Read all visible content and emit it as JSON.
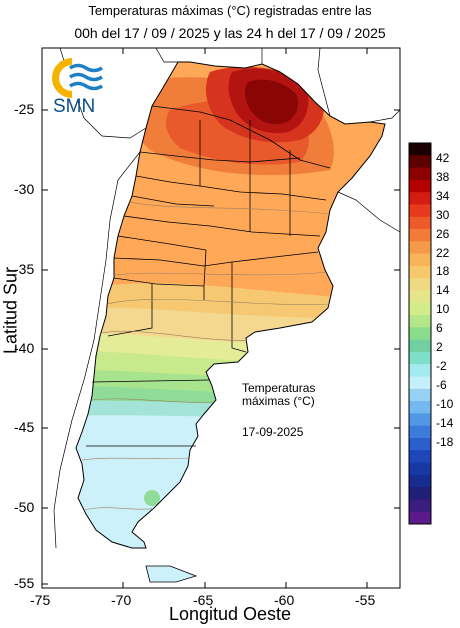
{
  "header": {
    "line1": "Temperaturas máximas (°C) registradas entre las",
    "line2": "00h del 17 / 09 / 2025 y las 24 h del 17 / 09 / 2025"
  },
  "logo": {
    "text": "SMN",
    "icon": "smn-sun-waves-icon"
  },
  "axes": {
    "ylabel": "Latitud Sur",
    "xlabel": "Longitud Oeste",
    "yticks": [
      "-25",
      "-30",
      "-35",
      "-40",
      "-45",
      "-50",
      "-55"
    ],
    "xticks": [
      "-75",
      "-70",
      "-65",
      "-60",
      "-55"
    ]
  },
  "annotation": {
    "title_line1": "Temperaturas",
    "title_line2": "máximas (°C)",
    "date": "17-09-2025"
  },
  "colorbar": {
    "labels": [
      "42",
      "38",
      "34",
      "30",
      "26",
      "22",
      "18",
      "14",
      "10",
      "6",
      "2",
      "-2",
      "-6",
      "-10",
      "-14",
      "-18"
    ],
    "colors": [
      "#1a0000",
      "#5c0000",
      "#8b0000",
      "#b30000",
      "#d51b12",
      "#e8391f",
      "#ee5a2a",
      "#f17b37",
      "#f59a49",
      "#f8b459",
      "#f7c86b",
      "#efd982",
      "#e7e58c",
      "#d2ec8c",
      "#b4e68a",
      "#8bdc8a",
      "#72cfa0",
      "#7edec7",
      "#a5eaf0",
      "#c5f0fa",
      "#97d2f5",
      "#74b8ef",
      "#5297e6",
      "#3c7bdc",
      "#2b5fcc",
      "#1e46b9",
      "#1838a6",
      "#162d8f",
      "#1f1f7a",
      "#3a1b7f",
      "#5a1a8c"
    ]
  }
}
